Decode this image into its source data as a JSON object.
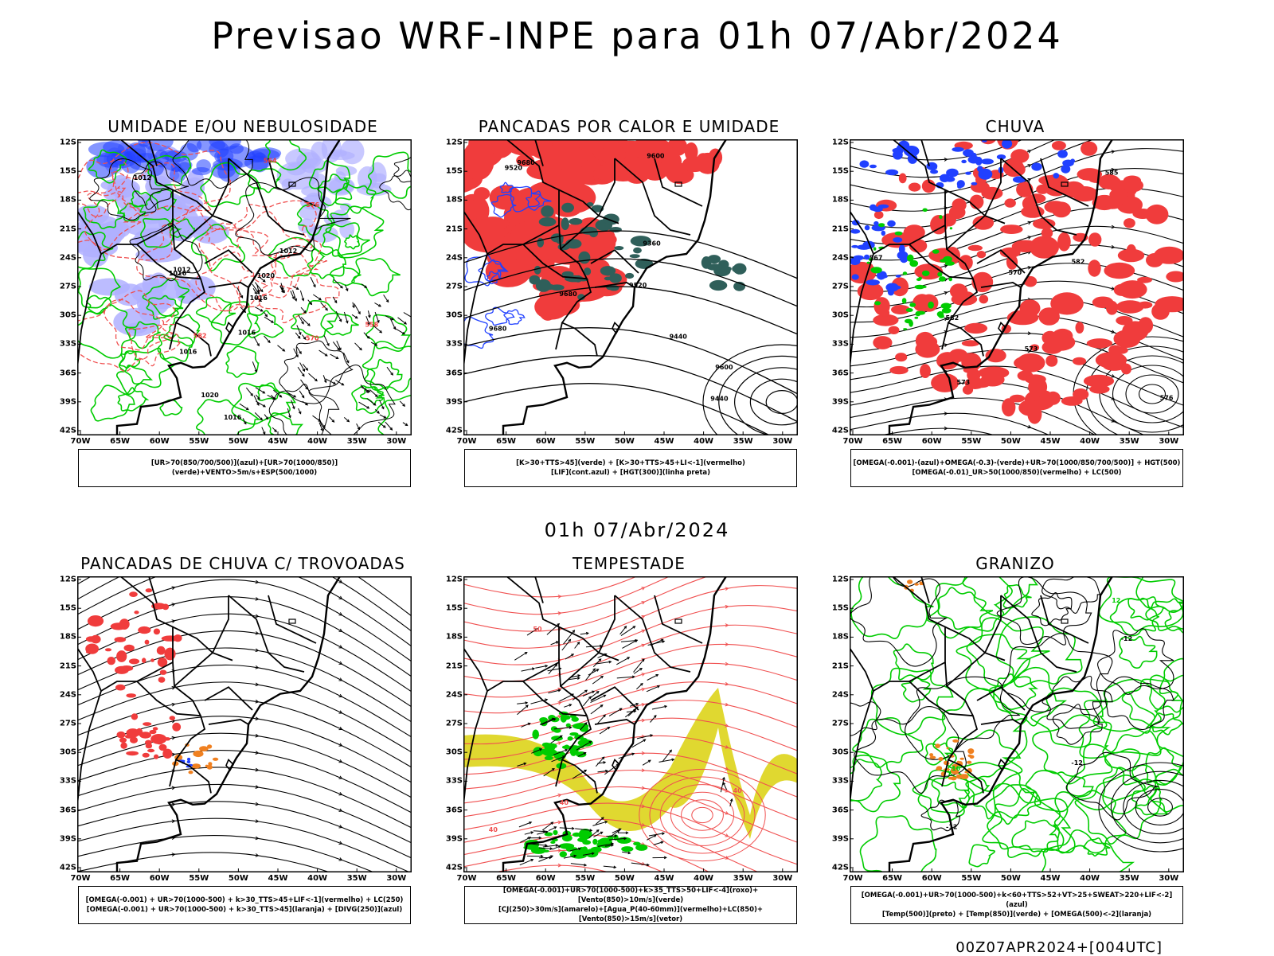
{
  "main_title": "Previsao WRF-INPE  para 01h 07/Abr/2024",
  "mid_label": "01h 07/Abr/2024",
  "footer": "00Z07APR2024+[004UTC]",
  "lat_ticks": [
    "12S",
    "15S",
    "18S",
    "21S",
    "24S",
    "27S",
    "30S",
    "33S",
    "36S",
    "39S",
    "42S"
  ],
  "lon_ticks": [
    "70W",
    "65W",
    "60W",
    "55W",
    "50W",
    "45W",
    "40W",
    "35W",
    "30W"
  ],
  "colors": {
    "red": "#f03c3c",
    "green": "#00cc00",
    "blue": "#2040ff",
    "lavender": "#b0b0ff",
    "dark_teal": "#2f5f5a",
    "yellow": "#e0d830",
    "orange": "#f08020",
    "contour_red": "#f05050"
  },
  "panels": [
    {
      "title": "UMIDADE E/OU NEBULOSIDADE",
      "legend": [
        "[UR>70(850/700/500)](azul)+[UR>70(1000/850)](verde)+VENTO>5m/s+ESP(500/1000)"
      ],
      "labels": [
        "1012",
        "1016",
        "1020",
        "1012",
        "1016",
        "1012",
        "1016",
        "1020",
        "1016",
        "1016",
        "576",
        "570",
        "564",
        "558",
        "582"
      ]
    },
    {
      "title": "PANCADAS POR CALOR E UMIDADE",
      "legend": [
        "[K>30+TTS>45](verde) + [K>30+TTS>45+LI<-1](vermelho)",
        "[LIF](cont.azul) + [HGT(300)](linha preta)"
      ],
      "labels": [
        "9680",
        "9680",
        "9680",
        "9600",
        "9600",
        "9520",
        "9520",
        "9440",
        "9440",
        "9360"
      ]
    },
    {
      "title": "CHUVA",
      "legend": [
        "[OMEGA(-0.001)-(azul)+OMEGA(-0.3)-(verde)+UR>70(1000/850/700/500)] + HGT(500)",
        "[OMEGA(-0.01)_UR>50(1000/850)(vermelho) + LC(500)"
      ],
      "labels": [
        "582",
        "585",
        "582",
        "576",
        "573",
        "573",
        "570",
        "567"
      ]
    },
    {
      "title": "PANCADAS DE CHUVA C/ TROVOADAS",
      "legend": [
        "[OMEGA(-0.001) + UR>70(1000-500) + k>30_TTS>45+LIF<-1](vermelho) + LC(250)",
        "[OMEGA(-0.001) + UR>70(1000-500) + k>30_TTS>45](laranja) + [DIVG(250)](azul)"
      ],
      "labels": []
    },
    {
      "title": "TEMPESTADE",
      "legend": [
        "[OMEGA(-0.001)+UR>70(1000-500)+k>35_TTS>50+LIF<-4](roxo)+[Vento(850)>10m/s](verde)",
        "[CJ(250)>30m/s](amarelo)+[Agua_P(40-60mm)](vermelho)+LC(850)+[Vento(850)>15m/s](vetor)"
      ],
      "labels": [
        "40",
        "50",
        "40",
        "40"
      ]
    },
    {
      "title": "GRANIZO",
      "legend": [
        "[OMEGA(-0.001)+UR>70(1000-500)+k<60+TTS>52+VT>25+SWEAT>220+LIF<-2](azul)",
        "[Temp(500)](preto) + [Temp(850)](verde) + [OMEGA(500)<-2](laranja)"
      ],
      "labels": [
        "-12",
        "-12",
        "-12",
        "16",
        "12"
      ]
    }
  ]
}
